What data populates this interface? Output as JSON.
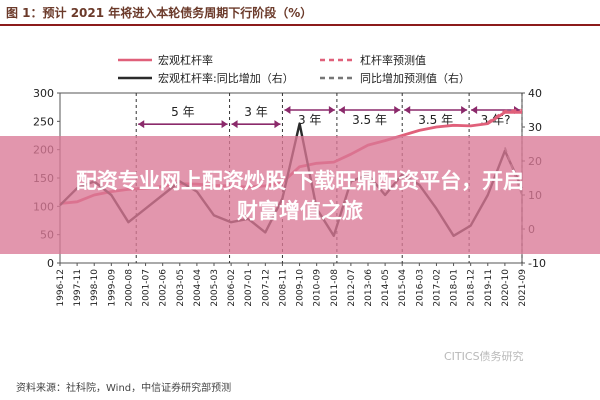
{
  "title": "图 1：预计 2021 年将进入本轮债务周期下行阶段（%）",
  "source": "资料来源：社科院，Wind，中信证券研究部预测",
  "watermark_logo": "CITICS债务研究",
  "overlay": {
    "line1": "配资专业网上配资炒股 下载旺鼎配资平台，开启",
    "line2": "财富增值之旅"
  },
  "colors": {
    "leverage": "#e0607a",
    "leverage_forecast": "#e0607a",
    "yoy": "#2b2b2b",
    "yoy_forecast": "#777777",
    "interval": "#8b2a6b",
    "overlay": "#da7896"
  },
  "chart_data": {
    "type": "line",
    "title": "图 1：预计 2021 年将进入本轮债务周期下行阶段（%）",
    "legend_position": "top",
    "y_left": {
      "ylim": [
        0,
        300
      ],
      "ticks": [
        0,
        50,
        100,
        150,
        200,
        250,
        300
      ]
    },
    "y_right": {
      "ylim": [
        -10,
        40
      ],
      "ticks": [
        -10,
        0,
        10,
        20,
        30,
        40
      ]
    },
    "x_ticks": [
      "1996-12",
      "1997-11",
      "1998-10",
      "1999-09",
      "2000-08",
      "2001-07",
      "2002-06",
      "2003-05",
      "2004-04",
      "2005-03",
      "2006-02",
      "2007-01",
      "2007-12",
      "2008-11",
      "2009-10",
      "2010-09",
      "2011-08",
      "2012-07",
      "2013-06",
      "2014-05",
      "2015-04",
      "2016-03",
      "2017-02",
      "2018-01",
      "2018-12",
      "2019-11",
      "2020-10",
      "2021-09"
    ],
    "series": [
      {
        "name": "宏观杠杆率",
        "axis": "left",
        "style": "solid",
        "points": [
          [
            "1996-12",
            105
          ],
          [
            "1997-11",
            108
          ],
          [
            "1998-10",
            120
          ],
          [
            "1999-09",
            126
          ],
          [
            "2000-08",
            130
          ],
          [
            "2001-07",
            132
          ],
          [
            "2002-06",
            135
          ],
          [
            "2003-05",
            140
          ],
          [
            "2004-04",
            139
          ],
          [
            "2005-03",
            137
          ],
          [
            "2006-02",
            136
          ],
          [
            "2007-01",
            134
          ],
          [
            "2007-12",
            136
          ],
          [
            "2008-11",
            142
          ],
          [
            "2009-10",
            170
          ],
          [
            "2010-09",
            176
          ],
          [
            "2011-08",
            178
          ],
          [
            "2012-07",
            192
          ],
          [
            "2013-06",
            208
          ],
          [
            "2014-05",
            216
          ],
          [
            "2015-04",
            225
          ],
          [
            "2016-03",
            234
          ],
          [
            "2017-02",
            240
          ],
          [
            "2018-01",
            243
          ],
          [
            "2018-12",
            242
          ],
          [
            "2019-11",
            246
          ],
          [
            "2020-10",
            266
          ],
          [
            "2021-09",
            266
          ]
        ]
      },
      {
        "name": "杠杆率预测值",
        "axis": "left",
        "style": "dashed",
        "points": [
          [
            "2019-11",
            248
          ],
          [
            "2020-10",
            268
          ],
          [
            "2021-09",
            270
          ]
        ]
      },
      {
        "name": "宏观杠杆率:同比增加（右）",
        "axis": "right",
        "style": "solid",
        "points": [
          [
            "1996-12",
            7
          ],
          [
            "1997-11",
            12
          ],
          [
            "1998-10",
            14
          ],
          [
            "1999-09",
            10
          ],
          [
            "2000-08",
            2
          ],
          [
            "2001-07",
            6
          ],
          [
            "2002-06",
            10
          ],
          [
            "2003-05",
            14
          ],
          [
            "2004-04",
            11
          ],
          [
            "2005-03",
            4
          ],
          [
            "2006-02",
            2
          ],
          [
            "2007-01",
            3
          ],
          [
            "2007-12",
            -1
          ],
          [
            "2008-11",
            9
          ],
          [
            "2009-10",
            31
          ],
          [
            "2010-09",
            6
          ],
          [
            "2011-08",
            -2
          ],
          [
            "2012-07",
            14
          ],
          [
            "2013-06",
            16
          ],
          [
            "2014-05",
            10
          ],
          [
            "2015-04",
            16
          ],
          [
            "2016-03",
            13
          ],
          [
            "2017-02",
            6
          ],
          [
            "2018-01",
            -2
          ],
          [
            "2018-12",
            1
          ],
          [
            "2019-11",
            10
          ],
          [
            "2020-10",
            23
          ],
          [
            "2021-09",
            12
          ]
        ]
      },
      {
        "name": "同比增加预测值（右）",
        "axis": "right",
        "style": "dashed",
        "points": [
          [
            "2020-10",
            24
          ],
          [
            "2021-09",
            10
          ],
          [
            "2021-09",
            -5
          ]
        ]
      }
    ],
    "intervals": [
      {
        "label": "5 年",
        "start": "2001-01",
        "end": "2006-01",
        "row": "upper",
        "axis_value": 245
      },
      {
        "label": "3 年",
        "start": "2006-01",
        "end": "2008-11",
        "row": "upper",
        "axis_value": 245
      },
      {
        "label": "3 年",
        "start": "2008-11",
        "end": "2011-10",
        "row": "lower",
        "axis_value": 35
      },
      {
        "label": "3.5 年",
        "start": "2011-10",
        "end": "2015-04",
        "row": "lower",
        "axis_value": 35
      },
      {
        "label": "3.5 年",
        "start": "2015-04",
        "end": "2018-11",
        "row": "lower",
        "axis_value": 35
      },
      {
        "label": "3 年?",
        "start": "2018-11",
        "end": "2021-09",
        "row": "lower",
        "axis_value": 35
      }
    ]
  }
}
